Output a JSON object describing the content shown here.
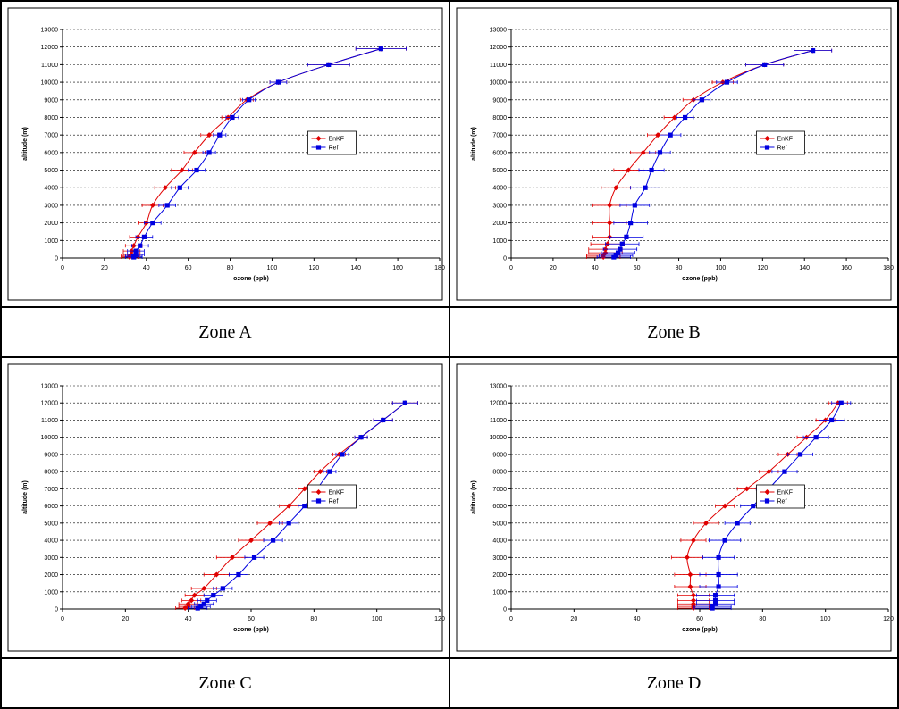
{
  "series_colors": {
    "EnKF": "#e00000",
    "Ref": "#0000e0"
  },
  "captions": [
    "Zone A",
    "Zone B",
    "Zone C",
    "Zone D"
  ],
  "chart_data": [
    {
      "type": "line",
      "panel": "Zone A",
      "xlabel": "ozone (ppb)",
      "ylabel": "altitude (m)",
      "xlim": [
        0,
        180
      ],
      "ylim": [
        0,
        13000
      ],
      "xticks": [
        0,
        20,
        40,
        60,
        80,
        100,
        120,
        140,
        160,
        180
      ],
      "yticks": [
        0,
        1000,
        2000,
        3000,
        4000,
        5000,
        6000,
        7000,
        8000,
        9000,
        10000,
        11000,
        12000,
        13000
      ],
      "grid": "horizontal dashed",
      "legend_position": "right",
      "series": [
        {
          "name": "EnKF",
          "y": [
            50,
            100,
            200,
            400,
            700,
            1200,
            2000,
            3000,
            4000,
            5000,
            6000,
            7000,
            8000,
            9000,
            10000,
            11000,
            11900
          ],
          "x": [
            32,
            32,
            33,
            33,
            34,
            36,
            40,
            43,
            49,
            57,
            63,
            70,
            79,
            88,
            103,
            127,
            152
          ],
          "err": [
            4,
            4,
            4,
            4,
            4,
            4,
            4,
            5,
            5,
            5,
            5,
            4,
            3,
            3,
            4,
            10,
            12
          ]
        },
        {
          "name": "Ref",
          "y": [
            50,
            100,
            200,
            400,
            700,
            1200,
            2000,
            3000,
            4000,
            5000,
            6000,
            7000,
            8000,
            9000,
            10000,
            11000,
            11900
          ],
          "x": [
            34,
            34,
            35,
            35,
            37,
            39,
            43,
            50,
            56,
            64,
            70,
            75,
            81,
            89,
            103,
            127,
            152
          ],
          "err": [
            4,
            4,
            4,
            4,
            4,
            4,
            4,
            4,
            4,
            4,
            3,
            3,
            3,
            3,
            4,
            10,
            12
          ]
        }
      ]
    },
    {
      "type": "line",
      "panel": "Zone B",
      "xlabel": "ozone (ppb)",
      "ylabel": "altitude (m)",
      "xlim": [
        0,
        180
      ],
      "ylim": [
        0,
        13000
      ],
      "xticks": [
        0,
        20,
        40,
        60,
        80,
        100,
        120,
        140,
        160,
        180
      ],
      "yticks": [
        0,
        1000,
        2000,
        3000,
        4000,
        5000,
        6000,
        7000,
        8000,
        9000,
        10000,
        11000,
        12000,
        13000
      ],
      "grid": "horizontal dashed",
      "legend_position": "right",
      "series": [
        {
          "name": "EnKF",
          "y": [
            50,
            150,
            300,
            500,
            800,
            1200,
            2000,
            3000,
            4000,
            5000,
            6000,
            7000,
            8000,
            9000,
            10000,
            11000,
            11800
          ],
          "x": [
            44,
            44,
            45,
            45,
            46,
            47,
            47,
            47,
            50,
            56,
            63,
            70,
            78,
            87,
            101,
            121,
            144
          ],
          "err": [
            8,
            8,
            8,
            8,
            8,
            8,
            8,
            8,
            7,
            7,
            6,
            5,
            5,
            5,
            5,
            9,
            9
          ]
        },
        {
          "name": "Ref",
          "y": [
            50,
            150,
            300,
            500,
            800,
            1200,
            2000,
            3000,
            4000,
            5000,
            6000,
            7000,
            8000,
            9000,
            10000,
            11000,
            11800
          ],
          "x": [
            49,
            50,
            51,
            52,
            53,
            55,
            57,
            59,
            64,
            67,
            71,
            76,
            83,
            91,
            103,
            121,
            144
          ],
          "err": [
            8,
            8,
            8,
            8,
            8,
            8,
            8,
            7,
            7,
            6,
            5,
            5,
            4,
            4,
            5,
            9,
            9
          ]
        }
      ]
    },
    {
      "type": "line",
      "panel": "Zone C",
      "xlabel": "ozone (ppb)",
      "ylabel": "altitude (m)",
      "xlim": [
        0,
        120
      ],
      "ylim": [
        0,
        13000
      ],
      "xticks": [
        0,
        20,
        40,
        60,
        80,
        100,
        120
      ],
      "yticks": [
        0,
        1000,
        2000,
        3000,
        4000,
        5000,
        6000,
        7000,
        8000,
        9000,
        10000,
        11000,
        12000,
        13000
      ],
      "grid": "horizontal dashed",
      "legend_position": "right",
      "series": [
        {
          "name": "EnKF",
          "y": [
            50,
            150,
            300,
            500,
            800,
            1200,
            2000,
            3000,
            4000,
            5000,
            6000,
            7000,
            8000,
            9000,
            10000,
            11000,
            12000
          ],
          "x": [
            39,
            40,
            40,
            41,
            42,
            45,
            49,
            54,
            60,
            66,
            72,
            77,
            82,
            88,
            95,
            102,
            109
          ],
          "err": [
            3,
            3,
            3,
            3,
            3,
            4,
            4,
            5,
            4,
            4,
            3,
            2,
            2,
            2,
            2,
            3,
            4
          ]
        },
        {
          "name": "Ref",
          "y": [
            50,
            150,
            300,
            500,
            800,
            1200,
            2000,
            3000,
            4000,
            5000,
            6000,
            7000,
            8000,
            9000,
            10000,
            11000,
            12000
          ],
          "x": [
            43,
            44,
            45,
            46,
            48,
            51,
            56,
            61,
            67,
            72,
            77,
            81,
            85,
            89,
            95,
            102,
            109
          ],
          "err": [
            3,
            3,
            3,
            3,
            3,
            3,
            3,
            3,
            3,
            3,
            2,
            2,
            2,
            2,
            2,
            3,
            4
          ]
        }
      ]
    },
    {
      "type": "line",
      "panel": "Zone D",
      "xlabel": "ozone (ppb)",
      "ylabel": "altitude (m)",
      "xlim": [
        0,
        120
      ],
      "ylim": [
        0,
        13000
      ],
      "xticks": [
        0,
        20,
        40,
        60,
        80,
        100,
        120
      ],
      "yticks": [
        0,
        1000,
        2000,
        3000,
        4000,
        5000,
        6000,
        7000,
        8000,
        9000,
        10000,
        11000,
        12000,
        13000
      ],
      "grid": "horizontal dashed",
      "legend_position": "right",
      "series": [
        {
          "name": "EnKF",
          "y": [
            50,
            150,
            300,
            500,
            800,
            1300,
            2000,
            3000,
            4000,
            5000,
            6000,
            7000,
            8000,
            9000,
            10000,
            11000,
            12000
          ],
          "x": [
            58,
            58,
            58,
            58,
            58,
            57,
            57,
            56,
            58,
            62,
            68,
            75,
            82,
            88,
            94,
            100,
            104
          ],
          "err": [
            5,
            5,
            5,
            5,
            5,
            5,
            5,
            5,
            4,
            4,
            3,
            3,
            3,
            3,
            3,
            3,
            3
          ]
        },
        {
          "name": "Ref",
          "y": [
            50,
            150,
            300,
            500,
            800,
            1300,
            2000,
            3000,
            4000,
            5000,
            6000,
            7000,
            8000,
            9000,
            10000,
            11000,
            12000
          ],
          "x": [
            64,
            64,
            65,
            65,
            65,
            66,
            66,
            66,
            68,
            72,
            77,
            82,
            87,
            92,
            97,
            102,
            105
          ],
          "err": [
            6,
            6,
            6,
            6,
            6,
            6,
            6,
            5,
            5,
            4,
            4,
            4,
            4,
            4,
            4,
            4,
            3
          ]
        }
      ]
    }
  ]
}
